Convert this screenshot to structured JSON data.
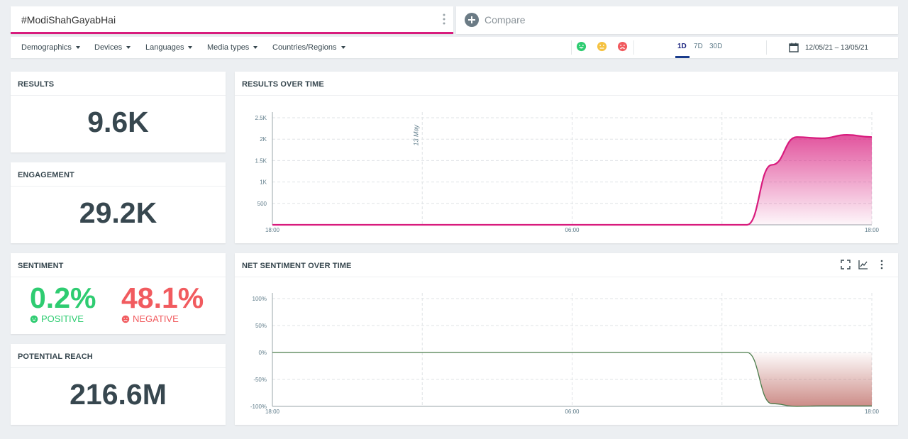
{
  "search": {
    "query": "#ModiShahGayabHai"
  },
  "compare": {
    "label": "Compare"
  },
  "filters": [
    {
      "label": "Demographics"
    },
    {
      "label": "Devices"
    },
    {
      "label": "Languages"
    },
    {
      "label": "Media types"
    },
    {
      "label": "Countries/Regions"
    }
  ],
  "sentiment_filter": [
    "positive-face-icon",
    "neutral-face-icon",
    "negative-face-icon"
  ],
  "ranges": [
    {
      "label": "1D",
      "active": true
    },
    {
      "label": "7D",
      "active": false
    },
    {
      "label": "30D",
      "active": false
    }
  ],
  "date_range": "12/05/21 – 13/05/21",
  "cards": {
    "results": {
      "title": "RESULTS",
      "value": "9.6K"
    },
    "engagement": {
      "title": "ENGAGEMENT",
      "value": "29.2K"
    },
    "sentiment": {
      "title": "SENTIMENT",
      "positive_value": "0.2%",
      "positive_label": "POSITIVE",
      "negative_value": "48.1%",
      "negative_label": "NEGATIVE"
    },
    "reach": {
      "title": "POTENTIAL REACH",
      "value": "216.6M"
    }
  },
  "colors": {
    "accent": "#d81b7d",
    "positive": "#2ecc71",
    "neutral": "#f5c242",
    "negative": "#f15b5f",
    "sentiment_line": "#4a7c4a",
    "sentiment_fill": "#c0706a"
  },
  "chart_data": [
    {
      "type": "area",
      "title": "RESULTS OVER TIME",
      "x_ticks": [
        "18:00",
        "06:00",
        "18:00"
      ],
      "y_ticks": [
        "500",
        "1K",
        "1.5K",
        "2K",
        "2.5K"
      ],
      "ylim": [
        0,
        2500
      ],
      "annotation": "13 May",
      "x": [
        0,
        1,
        2,
        3,
        4,
        5,
        6,
        7,
        8,
        9,
        10,
        11,
        12,
        13,
        14,
        15,
        16,
        17,
        18,
        19,
        20,
        21,
        22,
        23,
        24
      ],
      "values": [
        0,
        0,
        0,
        0,
        0,
        0,
        0,
        0,
        0,
        0,
        0,
        0,
        0,
        0,
        0,
        0,
        0,
        0,
        0,
        0,
        1400,
        2050,
        2020,
        2100,
        2050
      ],
      "grid": true
    },
    {
      "type": "area",
      "title": "NET SENTIMENT OVER TIME",
      "x_ticks": [
        "18:00",
        "06:00",
        "18:00"
      ],
      "y_ticks": [
        "100%",
        "50%",
        "0%",
        "-50%",
        "-100%"
      ],
      "ylim": [
        -100,
        100
      ],
      "x": [
        0,
        1,
        2,
        3,
        4,
        5,
        6,
        7,
        8,
        9,
        10,
        11,
        12,
        13,
        14,
        15,
        16,
        17,
        18,
        19,
        20,
        21,
        22,
        23,
        24
      ],
      "values": [
        0,
        0,
        0,
        0,
        0,
        0,
        0,
        0,
        0,
        0,
        0,
        0,
        0,
        0,
        0,
        0,
        0,
        0,
        0,
        0,
        -95,
        -100,
        -99,
        -99,
        -99
      ],
      "grid": true
    }
  ]
}
